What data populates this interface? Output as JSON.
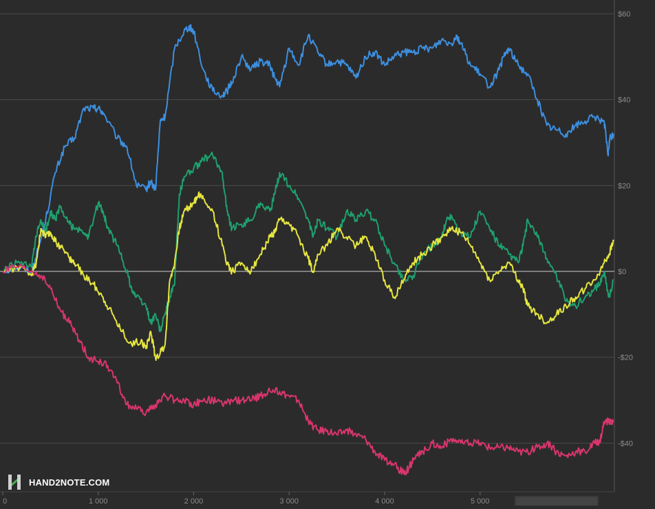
{
  "brand": {
    "logo_icon": "h2n-logo-icon",
    "name": "HAND2NOTE.COM",
    "accent": "#4caf50"
  },
  "chart_data": {
    "type": "line",
    "title": "",
    "xlabel": "",
    "ylabel": "",
    "xlim": [
      0,
      6400
    ],
    "ylim": [
      -50,
      62
    ],
    "y_ticks": [
      60,
      40,
      20,
      0,
      -20,
      -40
    ],
    "y_tick_labels": [
      "$60",
      "$40",
      "$20",
      "$0",
      "-$20",
      "-$40"
    ],
    "x_ticks": [
      0,
      1000,
      2000,
      3000,
      4000,
      5000
    ],
    "x_tick_labels": [
      "0",
      "1 000",
      "2 000",
      "3 000",
      "4 000",
      "5 000"
    ],
    "grid": true,
    "background": "#2b2b2b",
    "zero_line_color": "#b0b0b0",
    "grid_color": "#4a4a4a",
    "series": [
      {
        "color": "#3d8fe0",
        "x": [
          0,
          150,
          300,
          370,
          450,
          550,
          650,
          750,
          850,
          950,
          1000,
          1050,
          1200,
          1300,
          1400,
          1500,
          1550,
          1600,
          1650,
          1700,
          1800,
          1900,
          1950,
          2000,
          2100,
          2200,
          2300,
          2350,
          2400,
          2500,
          2600,
          2700,
          2800,
          2850,
          2900,
          3000,
          3100,
          3200,
          3300,
          3400,
          3500,
          3600,
          3700,
          3800,
          3900,
          4000,
          4100,
          4200,
          4300,
          4400,
          4500,
          4600,
          4700,
          4750,
          4800,
          4900,
          5000,
          5100,
          5200,
          5250,
          5300,
          5400,
          5500,
          5600,
          5700,
          5800,
          5900,
          6000,
          6100,
          6200,
          6300,
          6340,
          6360,
          6400
        ],
        "values": [
          0,
          1,
          0,
          5,
          12,
          23,
          29,
          31,
          38,
          38,
          38,
          37,
          31,
          29,
          20,
          19,
          21,
          19,
          35,
          36,
          52,
          56,
          57,
          56,
          47,
          42,
          41,
          42,
          44,
          50,
          47,
          49,
          48,
          45,
          43,
          52,
          48,
          55,
          51,
          48,
          49,
          48,
          45,
          50,
          51,
          48,
          50,
          51,
          51,
          52,
          52,
          54,
          53,
          55,
          53,
          48,
          46,
          43,
          47,
          50,
          52,
          48,
          46,
          40,
          34,
          33,
          32,
          34,
          35,
          36,
          35,
          27,
          31,
          32
        ]
      },
      {
        "color": "#1fa06e",
        "x": [
          0,
          150,
          300,
          350,
          400,
          450,
          500,
          550,
          600,
          700,
          750,
          850,
          900,
          1000,
          1050,
          1100,
          1200,
          1300,
          1350,
          1400,
          1500,
          1550,
          1600,
          1650,
          1700,
          1750,
          1800,
          1850,
          1900,
          2000,
          2100,
          2200,
          2300,
          2350,
          2400,
          2500,
          2600,
          2700,
          2800,
          2850,
          2900,
          3000,
          3100,
          3200,
          3250,
          3300,
          3400,
          3500,
          3600,
          3700,
          3800,
          3900,
          4000,
          4100,
          4200,
          4300,
          4400,
          4500,
          4600,
          4650,
          4700,
          4800,
          4900,
          5000,
          5100,
          5200,
          5300,
          5400,
          5450,
          5500,
          5600,
          5700,
          5800,
          5900,
          6000,
          6100,
          6200,
          6250,
          6300,
          6350,
          6400
        ],
        "values": [
          0,
          2,
          1,
          8,
          12,
          9,
          14,
          12,
          15,
          11,
          10,
          9,
          8,
          16,
          14,
          10,
          6,
          0,
          -4,
          -6,
          -8,
          -12,
          -10,
          -14,
          -10,
          -6,
          -3,
          18,
          22,
          24,
          26,
          27,
          23,
          14,
          10,
          11,
          12,
          16,
          14,
          18,
          23,
          20,
          17,
          12,
          8,
          12,
          10,
          8,
          14,
          12,
          14,
          12,
          6,
          2,
          -2,
          -1,
          4,
          6,
          8,
          12,
          13,
          9,
          8,
          14,
          10,
          6,
          4,
          2,
          6,
          12,
          8,
          3,
          -1,
          -7,
          -8,
          -6,
          -4,
          -3,
          0,
          -6,
          -2
        ]
      },
      {
        "color": "#e6e640",
        "x": [
          0,
          150,
          300,
          350,
          400,
          450,
          500,
          550,
          600,
          700,
          750,
          850,
          950,
          1050,
          1150,
          1250,
          1350,
          1450,
          1500,
          1550,
          1600,
          1650,
          1700,
          1750,
          1800,
          1850,
          1900,
          2000,
          2050,
          2100,
          2200,
          2300,
          2350,
          2400,
          2500,
          2600,
          2700,
          2800,
          2850,
          2900,
          3000,
          3100,
          3200,
          3250,
          3300,
          3400,
          3500,
          3600,
          3700,
          3800,
          3900,
          4000,
          4100,
          4200,
          4300,
          4400,
          4500,
          4600,
          4700,
          4800,
          4900,
          5000,
          5100,
          5200,
          5300,
          5400,
          5450,
          5500,
          5600,
          5700,
          5800,
          5900,
          6000,
          6100,
          6200,
          6300,
          6350,
          6400
        ],
        "values": [
          0,
          1,
          -1,
          2,
          10,
          8,
          9,
          7,
          6,
          3,
          2,
          -1,
          -3,
          -6,
          -10,
          -14,
          -17,
          -16,
          -18,
          -14,
          -20,
          -19,
          -17,
          -2,
          2,
          10,
          14,
          16,
          18,
          17,
          14,
          6,
          2,
          0,
          2,
          0,
          4,
          8,
          9,
          12,
          11,
          8,
          3,
          0,
          4,
          6,
          10,
          8,
          6,
          8,
          4,
          -2,
          -6,
          -2,
          2,
          4,
          6,
          8,
          10,
          9,
          6,
          2,
          -2,
          0,
          2,
          -2,
          -4,
          -8,
          -10,
          -12,
          -10,
          -8,
          -6,
          -4,
          -2,
          2,
          4,
          7
        ]
      },
      {
        "color": "#d8356e",
        "x": [
          0,
          150,
          300,
          400,
          500,
          600,
          700,
          800,
          900,
          1000,
          1100,
          1200,
          1300,
          1400,
          1500,
          1600,
          1700,
          1800,
          1900,
          2000,
          2100,
          2200,
          2300,
          2400,
          2500,
          2600,
          2700,
          2800,
          2900,
          3000,
          3100,
          3200,
          3300,
          3400,
          3500,
          3600,
          3700,
          3800,
          3900,
          4000,
          4100,
          4200,
          4250,
          4300,
          4400,
          4500,
          4600,
          4700,
          4800,
          4900,
          5000,
          5100,
          5200,
          5300,
          5400,
          5500,
          5600,
          5700,
          5800,
          5900,
          6000,
          6100,
          6200,
          6250,
          6300,
          6350,
          6400
        ],
        "values": [
          0,
          1,
          0,
          -1,
          -4,
          -9,
          -12,
          -16,
          -20,
          -21,
          -22,
          -26,
          -31,
          -32,
          -33,
          -31,
          -29,
          -30,
          -30,
          -31,
          -30,
          -30,
          -31,
          -30,
          -30,
          -30,
          -29,
          -28,
          -28,
          -29,
          -30,
          -35,
          -37,
          -37,
          -38,
          -37,
          -38,
          -39,
          -42,
          -44,
          -45,
          -47,
          -46,
          -44,
          -42,
          -40,
          -41,
          -39,
          -40,
          -40,
          -40,
          -41,
          -41,
          -41,
          -42,
          -42,
          -41,
          -40,
          -42,
          -43,
          -42,
          -42,
          -40,
          -40,
          -35,
          -35,
          -35
        ]
      }
    ]
  }
}
